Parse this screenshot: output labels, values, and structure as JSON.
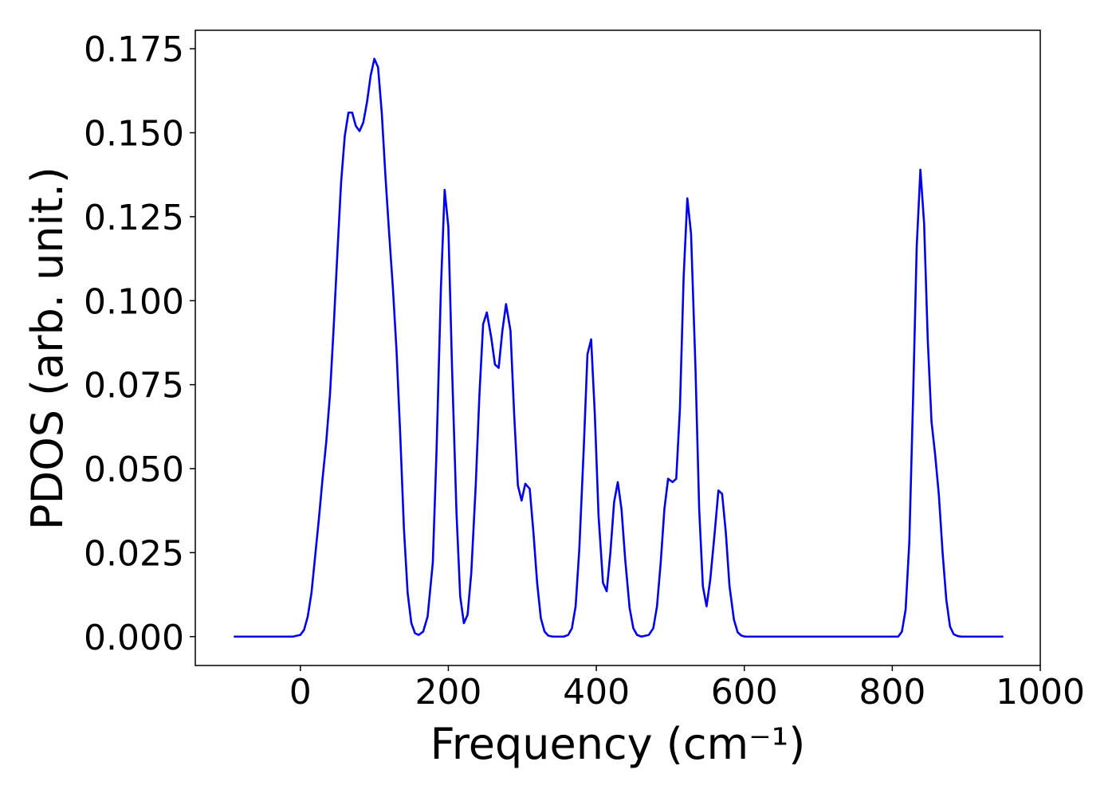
{
  "chart_data": {
    "type": "line",
    "xlabel": "Frequency (cm⁻¹)",
    "ylabel": "PDOS (arb. unit.)",
    "x": [
      -90,
      -10,
      0,
      5,
      10,
      15,
      20,
      25,
      30,
      35,
      40,
      45,
      50,
      55,
      60,
      65,
      70,
      75,
      80,
      85,
      90,
      95,
      100,
      105,
      110,
      115,
      120,
      125,
      130,
      135,
      140,
      145,
      150,
      155,
      160,
      166,
      172,
      179,
      184,
      190,
      195,
      200,
      205,
      211,
      216,
      221,
      226,
      231,
      237,
      242,
      247,
      252,
      258,
      263,
      268,
      273,
      278,
      284,
      289,
      294,
      299,
      304,
      310,
      315,
      320,
      325,
      330,
      335,
      341,
      356,
      362,
      367,
      372,
      377,
      383,
      388,
      393,
      398,
      403,
      409,
      414,
      419,
      424,
      429,
      434,
      439,
      445,
      450,
      455,
      461,
      471,
      477,
      482,
      487,
      492,
      497,
      503,
      508,
      513,
      518,
      523,
      528,
      534,
      539,
      544,
      549,
      554,
      560,
      565,
      570,
      575,
      580,
      586,
      591,
      596,
      601,
      808,
      813,
      818,
      823,
      828,
      833,
      838,
      843,
      848,
      853,
      858,
      863,
      868,
      873,
      878,
      883,
      888,
      893,
      950
    ],
    "series": [
      {
        "name": "PDOS",
        "color": "#0000ee",
        "values": [
          0,
          0,
          0.0005,
          0.002,
          0.006,
          0.013,
          0.024,
          0.035,
          0.047,
          0.058,
          0.072,
          0.092,
          0.114,
          0.135,
          0.149,
          0.156,
          0.156,
          0.152,
          0.1505,
          0.153,
          0.159,
          0.167,
          0.172,
          0.1695,
          0.156,
          0.137,
          0.12,
          0.104,
          0.085,
          0.06,
          0.032,
          0.013,
          0.004,
          0.001,
          0.0005,
          0.0015,
          0.006,
          0.022,
          0.055,
          0.104,
          0.133,
          0.122,
          0.08,
          0.037,
          0.012,
          0.004,
          0.0065,
          0.019,
          0.045,
          0.072,
          0.093,
          0.0965,
          0.089,
          0.081,
          0.08,
          0.091,
          0.099,
          0.091,
          0.066,
          0.045,
          0.0405,
          0.0455,
          0.044,
          0.031,
          0.016,
          0.0055,
          0.0015,
          0.0003,
          0,
          0,
          0.0005,
          0.0025,
          0.009,
          0.026,
          0.056,
          0.084,
          0.0885,
          0.066,
          0.036,
          0.016,
          0.0135,
          0.025,
          0.04,
          0.046,
          0.038,
          0.023,
          0.0085,
          0.0025,
          0.0005,
          0,
          0.0005,
          0.0025,
          0.009,
          0.022,
          0.038,
          0.047,
          0.046,
          0.047,
          0.068,
          0.107,
          0.1305,
          0.12,
          0.08,
          0.038,
          0.015,
          0.009,
          0.017,
          0.031,
          0.0435,
          0.0425,
          0.031,
          0.015,
          0.005,
          0.0013,
          0.0003,
          0,
          0,
          0.0015,
          0.008,
          0.028,
          0.07,
          0.116,
          0.139,
          0.123,
          0.088,
          0.064,
          0.054,
          0.042,
          0.025,
          0.011,
          0.003,
          0.0007,
          0.0002,
          0,
          0
        ]
      }
    ],
    "xlim": [
      -142,
      1000
    ],
    "ylim": [
      -0.0086,
      0.1805
    ],
    "xticks": [
      0,
      200,
      400,
      600,
      800,
      1000
    ],
    "yticks": [
      {
        "value": 0,
        "label": "0.000"
      },
      0.025,
      {
        "value": 0.05,
        "label": "0.050"
      },
      0.075,
      {
        "value": 0.1,
        "label": "0.100"
      },
      0.125,
      {
        "value": 0.15,
        "label": "0.150"
      },
      0.175
    ]
  }
}
